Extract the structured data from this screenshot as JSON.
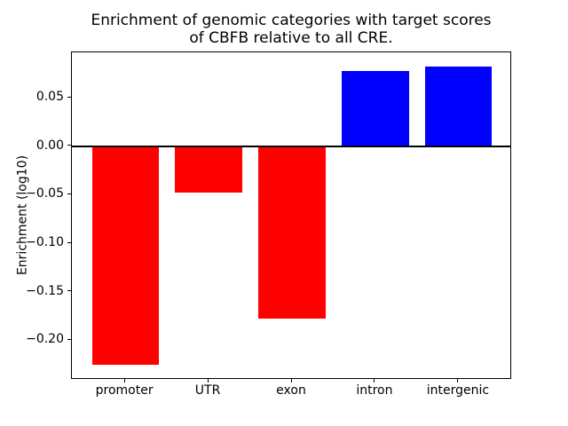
{
  "chart_data": {
    "type": "bar",
    "title": "Enrichment of genomic categories with target scores\nof CBFB relative to all CRE.",
    "ylabel": "Enrichment (log10)",
    "categories": [
      "promoter",
      "UTR",
      "exon",
      "intron",
      "intergenic"
    ],
    "values": [
      -0.225,
      -0.048,
      -0.178,
      0.078,
      0.082
    ],
    "bar_colors": [
      "#ff0000",
      "#ff0000",
      "#ff0000",
      "#0000ff",
      "#0000ff"
    ],
    "negative_color": "#ff0000",
    "positive_color": "#0000ff",
    "ylim": [
      -0.241,
      0.097
    ],
    "yticks": [
      0.05,
      0.0,
      -0.05,
      -0.1,
      -0.15,
      -0.2
    ],
    "ytick_labels": [
      "0.05",
      "0.00",
      "−0.05",
      "−0.10",
      "−0.15",
      "−0.20"
    ],
    "zero_line": true,
    "grid": false,
    "legend": "none",
    "axes_frame": true
  }
}
